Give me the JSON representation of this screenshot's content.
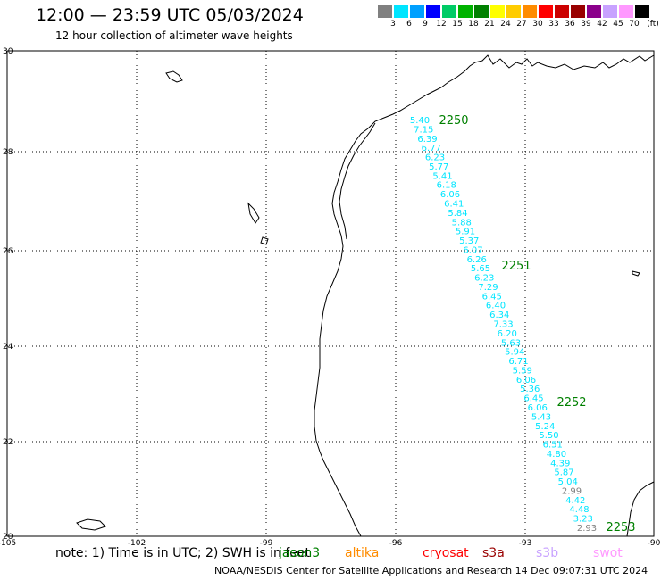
{
  "header": {
    "title": "12:00 — 23:59 UTC 05/03/2024",
    "subtitle": "12 hour collection of altimeter wave heights"
  },
  "legend": {
    "unit": "(ft)",
    "entries": [
      {
        "label": "3",
        "color": "#808080"
      },
      {
        "label": "6",
        "color": "#00e5ff"
      },
      {
        "label": "9",
        "color": "#00a0ff"
      },
      {
        "label": "12",
        "color": "#0000ff"
      },
      {
        "label": "15",
        "color": "#00cc66"
      },
      {
        "label": "18",
        "color": "#00b300"
      },
      {
        "label": "21",
        "color": "#008000"
      },
      {
        "label": "24",
        "color": "#ffff00"
      },
      {
        "label": "27",
        "color": "#ffcc00"
      },
      {
        "label": "30",
        "color": "#ff8c00"
      },
      {
        "label": "33",
        "color": "#ff0000"
      },
      {
        "label": "36",
        "color": "#cc0000"
      },
      {
        "label": "39",
        "color": "#990000"
      },
      {
        "label": "42",
        "color": "#8b008b"
      },
      {
        "label": "45",
        "color": "#c8a2ff"
      },
      {
        "label": "70",
        "color": "#ff99ff"
      },
      {
        "label": "",
        "color": "#000000"
      }
    ]
  },
  "axes": {
    "lat_labels": [
      "30",
      "28",
      "26",
      "24",
      "22",
      "20"
    ],
    "lon_labels": [
      "-105",
      "-102",
      "-99",
      "-96",
      "-93",
      "-90"
    ]
  },
  "chart_data": {
    "type": "scatter",
    "series": [
      {
        "name": "jason3",
        "values": [
          "5.40",
          "7.15",
          "6.39",
          "6.77",
          "6.23",
          "5.77",
          "5.41",
          "6.18",
          "6.06",
          "6.41",
          "5.84",
          "5.88",
          "5.91",
          "5.37",
          "6.07",
          "6.26",
          "5.65",
          "6.23",
          "7.29",
          "6.45",
          "6.40",
          "6.34",
          "7.33",
          "6.20",
          "5.63",
          "5.94",
          "6.71",
          "5.59",
          "6.06",
          "5.36",
          "6.45",
          "6.06",
          "5.43",
          "5.24",
          "5.50",
          "6.51",
          "4.80",
          "4.39",
          "5.87",
          "5.04",
          "2.99",
          "4.42",
          "4.48",
          "3.23",
          "2.93"
        ],
        "point_colors": [
          "#00e5ff",
          "#00e5ff",
          "#00e5ff",
          "#00e5ff",
          "#00e5ff",
          "#00e5ff",
          "#00e5ff",
          "#00e5ff",
          "#00e5ff",
          "#00e5ff",
          "#00e5ff",
          "#00e5ff",
          "#00e5ff",
          "#00e5ff",
          "#00e5ff",
          "#00e5ff",
          "#00e5ff",
          "#00e5ff",
          "#00e5ff",
          "#00e5ff",
          "#00e5ff",
          "#00e5ff",
          "#00e5ff",
          "#00e5ff",
          "#00e5ff",
          "#00e5ff",
          "#00e5ff",
          "#00e5ff",
          "#00e5ff",
          "#00e5ff",
          "#00e5ff",
          "#00e5ff",
          "#00e5ff",
          "#00e5ff",
          "#00e5ff",
          "#00e5ff",
          "#00e5ff",
          "#00e5ff",
          "#00e5ff",
          "#00e5ff",
          "#808080",
          "#00e5ff",
          "#00e5ff",
          "#00e5ff",
          "#808080"
        ]
      }
    ],
    "time_labels": [
      "2250",
      "2251",
      "2252",
      "2253"
    ]
  },
  "footer": {
    "note": "note: 1) Time is in UTC; 2) SWH is in feet",
    "satellites": [
      {
        "label": "jason3",
        "color": "#008000"
      },
      {
        "label": "altika",
        "color": "#ff8c00"
      },
      {
        "label": "cryosat",
        "color": "#ff0000"
      },
      {
        "label": "s3a",
        "color": "#990000"
      },
      {
        "label": "s3b",
        "color": "#c8a2ff"
      },
      {
        "label": "swot",
        "color": "#ff99ff"
      }
    ],
    "credit": "NOAA/NESDIS Center for Satellite Applications and Research   14 Dec 09:07:31 UTC 2024"
  }
}
